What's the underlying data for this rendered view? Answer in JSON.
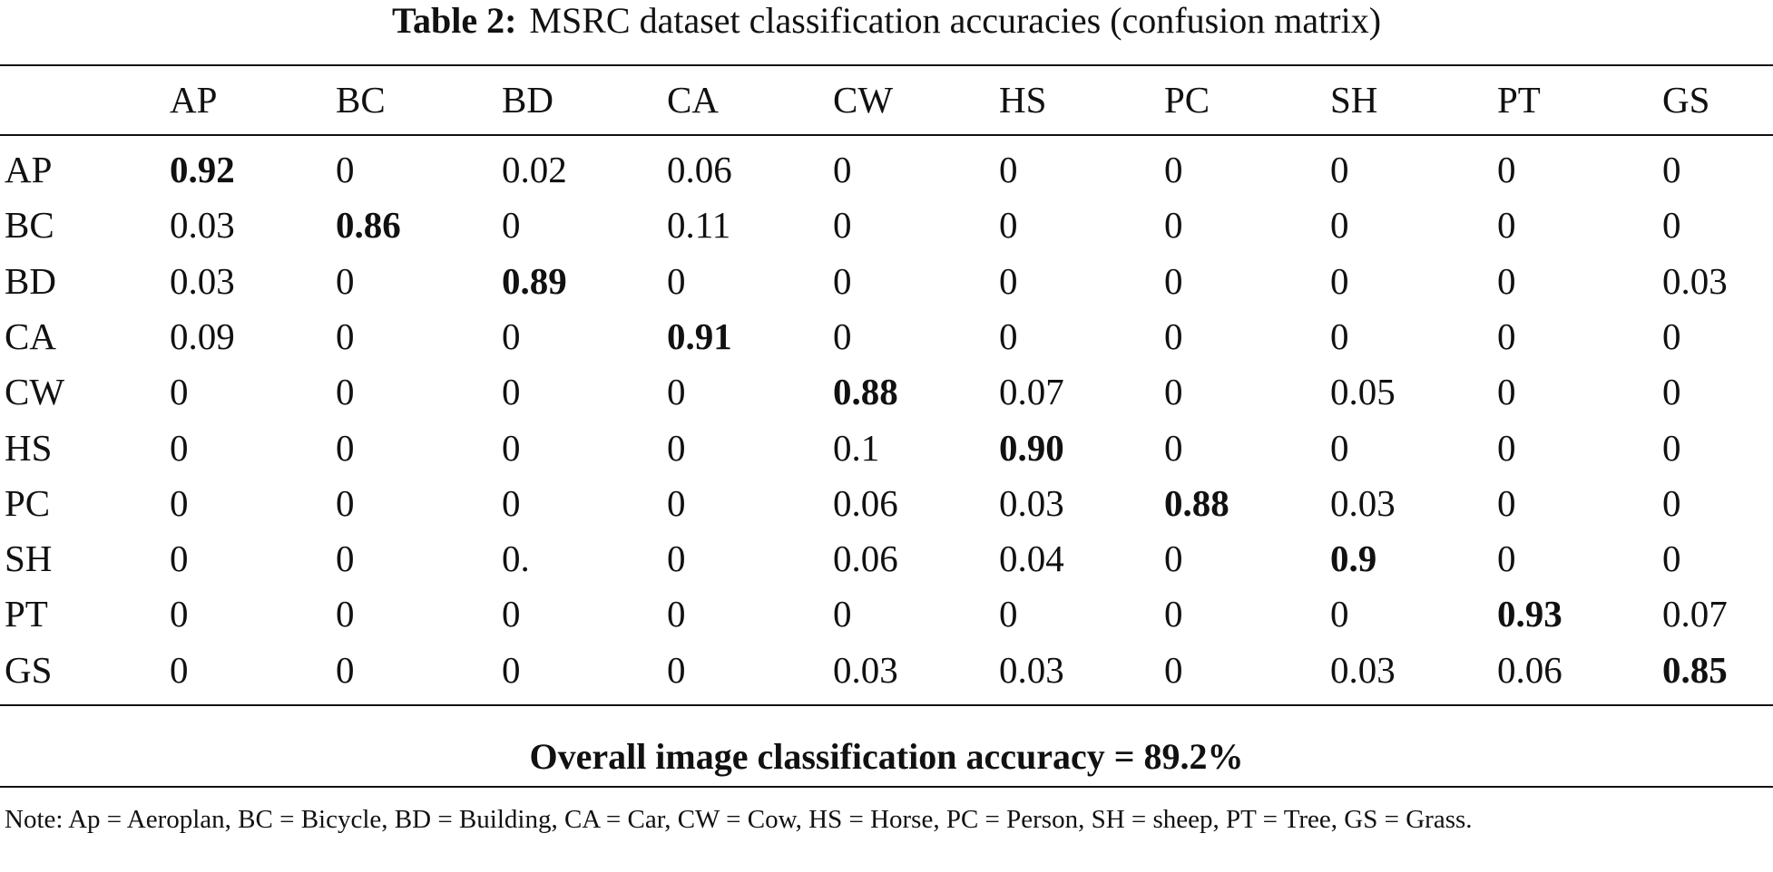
{
  "title": {
    "label": "Table 2:",
    "text": "MSRC dataset classification accuracies (confusion matrix)"
  },
  "table": {
    "header": [
      "AP",
      "BC",
      "BD",
      "CA",
      "CW",
      "HS",
      "PC",
      "SH",
      "PT",
      "GS"
    ],
    "rows": [
      [
        "AP",
        "0.92",
        "0",
        "0.02",
        "0.06",
        "0",
        "0",
        "0",
        "0",
        "0",
        "0"
      ],
      [
        "BC",
        "0.03",
        "0.86",
        "0",
        "0.11",
        "0",
        "0",
        "0",
        "0",
        "0",
        "0"
      ],
      [
        "BD",
        "0.03",
        "0",
        "0.89",
        "0",
        "0",
        "0",
        "0",
        "0",
        "0",
        "0.03"
      ],
      [
        "CA",
        "0.09",
        "0",
        "0",
        "0.91",
        "0",
        "0",
        "0",
        "0",
        "0",
        "0"
      ],
      [
        "CW",
        "0",
        "0",
        "0",
        "0",
        "0.88",
        "0.07",
        "0",
        "0.05",
        "0",
        "0"
      ],
      [
        "HS",
        "0",
        "0",
        "0",
        "0",
        "0.1",
        "0.90",
        "0",
        "0",
        "0",
        "0"
      ],
      [
        "PC",
        "0",
        "0",
        "0",
        "0",
        "0.06",
        "0.03",
        "0.88",
        "0.03",
        "0",
        "0"
      ],
      [
        "SH",
        "0",
        "0",
        "0.",
        "0",
        "0.06",
        "0.04",
        "0",
        "0.9",
        "0",
        "0"
      ],
      [
        "PT",
        "0",
        "0",
        "0",
        "0",
        "0",
        "0",
        "0",
        "0",
        "0.93",
        "0.07"
      ],
      [
        "GS",
        "0",
        "0",
        "0",
        "0",
        "0.03",
        "0.03",
        "0",
        "0.03",
        "0.06",
        "0.85"
      ]
    ]
  },
  "summary": "Overall image classification accuracy = 89.2%",
  "note": "Note: Ap = Aeroplan, BC = Bicycle, BD = Building, CA = Car, CW = Cow, HS = Horse, PC = Person, SH = sheep, PT = Tree, GS = Grass."
}
